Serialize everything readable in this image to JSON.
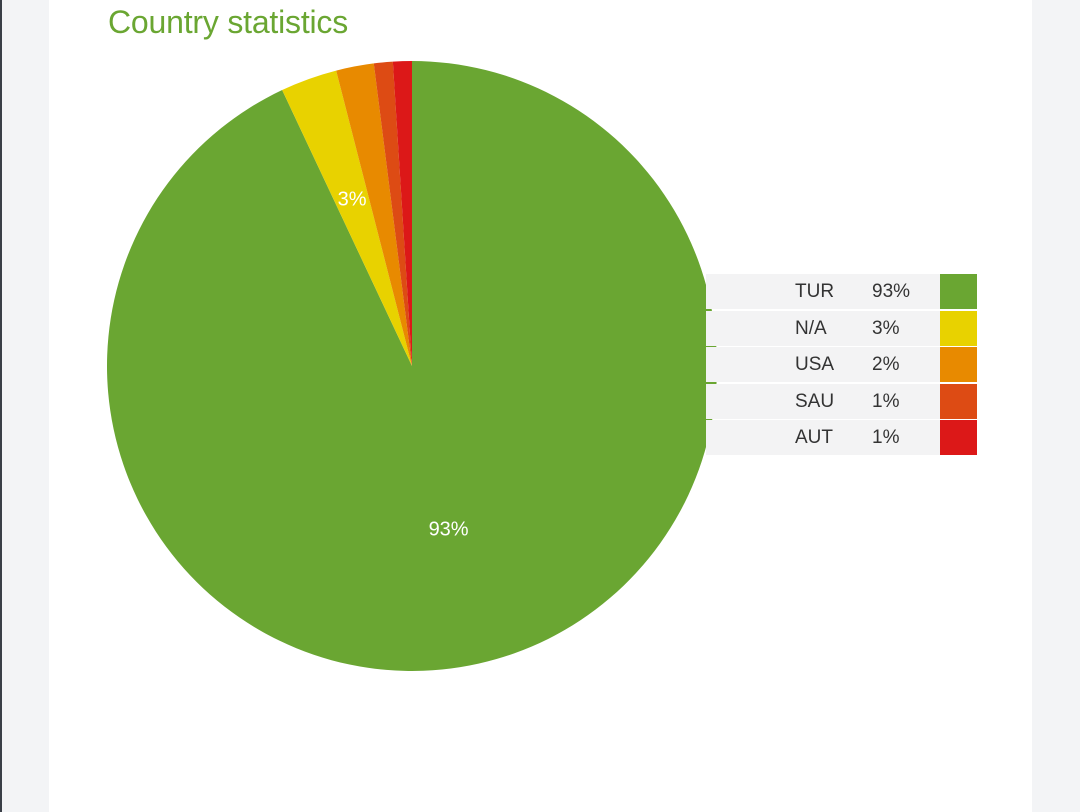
{
  "colors": {
    "title": "#6aa632",
    "TUR": "#6aa632",
    "N/A": "#e8d200",
    "USA": "#e88a00",
    "SAU": "#dd4b14",
    "AUT": "#dc1818"
  },
  "chart_data": {
    "type": "pie",
    "title": "Country statistics",
    "legend_position": "right",
    "slices": [
      {
        "label": "TUR",
        "value": 93,
        "display": "93%",
        "color": "#6aa632",
        "show_label": true
      },
      {
        "label": "N/A",
        "value": 3,
        "display": "3%",
        "color": "#e8d200",
        "show_label": true
      },
      {
        "label": "USA",
        "value": 2,
        "display": "2%",
        "color": "#e88a00",
        "show_label": false
      },
      {
        "label": "SAU",
        "value": 1,
        "display": "1%",
        "color": "#dd4b14",
        "show_label": false
      },
      {
        "label": "AUT",
        "value": 1,
        "display": "1%",
        "color": "#dc1818",
        "show_label": false
      }
    ]
  }
}
